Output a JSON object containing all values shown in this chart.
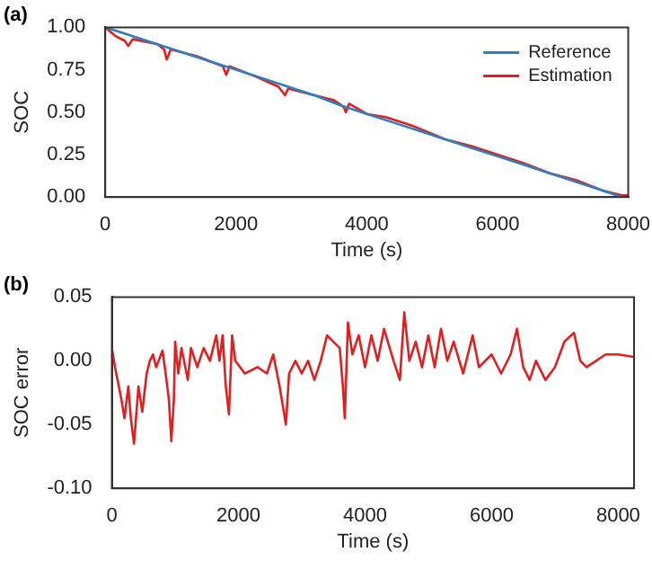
{
  "chart_data": [
    {
      "type": "line",
      "title": "(a)",
      "xlabel": "Time (s)",
      "ylabel": "SOC",
      "xlim": [
        0,
        8000
      ],
      "ylim": [
        0,
        1
      ],
      "xticks": [
        0,
        2000,
        4000,
        6000,
        8000
      ],
      "yticks": [
        {
          "value": 0,
          "label": "0.00"
        },
        {
          "value": 0.25,
          "label": "0.25"
        },
        {
          "value": 0.5,
          "label": "0.50"
        },
        {
          "value": 0.75,
          "label": "0.75"
        },
        {
          "value": 1,
          "label": "1.00"
        }
      ],
      "legend": "top right",
      "marker": "none",
      "line_style": "solid",
      "series": [
        {
          "name": "Reference",
          "color": "#2f7ec1",
          "x": [
            0,
            400,
            800,
            1200,
            1600,
            2000,
            2400,
            2800,
            3200,
            3600,
            4000,
            4400,
            4800,
            5200,
            5600,
            6000,
            6400,
            6800,
            7200,
            7600,
            7900
          ],
          "values": [
            1.0,
            0.95,
            0.9,
            0.85,
            0.8,
            0.75,
            0.7,
            0.65,
            0.6,
            0.54,
            0.49,
            0.44,
            0.39,
            0.34,
            0.29,
            0.24,
            0.19,
            0.14,
            0.09,
            0.04,
            0.0
          ]
        },
        {
          "name": "Estimation",
          "color": "#e02020",
          "x": [
            0,
            150,
            300,
            350,
            420,
            550,
            800,
            900,
            940,
            1000,
            1400,
            1800,
            1850,
            1900,
            2300,
            2650,
            2750,
            2800,
            3200,
            3500,
            3650,
            3680,
            3730,
            4000,
            4300,
            4620,
            4700,
            5200,
            5600,
            6000,
            6400,
            6800,
            7200,
            7600,
            7900,
            8000
          ],
          "values": [
            1.0,
            0.95,
            0.92,
            0.89,
            0.93,
            0.92,
            0.9,
            0.87,
            0.81,
            0.87,
            0.83,
            0.77,
            0.72,
            0.77,
            0.71,
            0.65,
            0.6,
            0.64,
            0.6,
            0.57,
            0.53,
            0.5,
            0.55,
            0.49,
            0.47,
            0.43,
            0.42,
            0.34,
            0.3,
            0.25,
            0.2,
            0.14,
            0.1,
            0.04,
            0.01,
            0.01
          ]
        }
      ]
    },
    {
      "type": "line",
      "title": "(b)",
      "xlabel": "Time (s)",
      "ylabel": "SOC error",
      "xlim": [
        0,
        8250
      ],
      "ylim": [
        -0.1,
        0.05
      ],
      "xticks": [
        0,
        2000,
        4000,
        6000,
        8000
      ],
      "yticks": [
        {
          "value": -0.1,
          "label": "-0.10"
        },
        {
          "value": -0.05,
          "label": "-0.05"
        },
        {
          "value": 0,
          "label": "0.00"
        },
        {
          "value": 0.05,
          "label": "0.05"
        }
      ],
      "marker": "none",
      "line_style": "solid",
      "series": [
        {
          "color": "#e02020",
          "x": [
            0,
            50,
            150,
            200,
            260,
            300,
            350,
            420,
            480,
            550,
            600,
            650,
            700,
            800,
            850,
            900,
            940,
            980,
            1000,
            1050,
            1100,
            1200,
            1250,
            1350,
            1450,
            1550,
            1650,
            1700,
            1750,
            1800,
            1850,
            1900,
            1950,
            2100,
            2300,
            2450,
            2550,
            2650,
            2750,
            2800,
            2900,
            3000,
            3100,
            3200,
            3300,
            3400,
            3500,
            3600,
            3650,
            3680,
            3730,
            3800,
            3900,
            4000,
            4100,
            4200,
            4300,
            4450,
            4550,
            4620,
            4700,
            4800,
            4900,
            5000,
            5100,
            5200,
            5300,
            5400,
            5550,
            5700,
            5800,
            6000,
            6150,
            6300,
            6400,
            6500,
            6600,
            6700,
            6850,
            7000,
            7150,
            7300,
            7400,
            7500,
            7650,
            7800,
            8000,
            8250
          ],
          "values": [
            0.01,
            -0.005,
            -0.03,
            -0.045,
            -0.02,
            -0.045,
            -0.065,
            -0.02,
            -0.04,
            -0.01,
            0.0,
            0.005,
            -0.005,
            0.008,
            -0.01,
            -0.03,
            -0.063,
            -0.03,
            0.015,
            -0.01,
            0.01,
            -0.015,
            0.01,
            -0.005,
            0.01,
            0.0,
            0.02,
            0.0,
            0.02,
            -0.02,
            -0.042,
            0.02,
            0.0,
            -0.01,
            -0.005,
            -0.01,
            0.005,
            -0.02,
            -0.05,
            -0.01,
            0.0,
            -0.01,
            0.0,
            -0.015,
            0.0,
            0.02,
            0.015,
            0.01,
            -0.02,
            -0.045,
            0.03,
            0.005,
            0.02,
            -0.005,
            0.02,
            0.0,
            0.025,
            0.0,
            -0.015,
            0.038,
            0.0,
            0.015,
            -0.005,
            0.02,
            -0.005,
            0.025,
            0.0,
            0.015,
            -0.01,
            0.02,
            -0.005,
            0.005,
            -0.01,
            0.005,
            0.025,
            -0.005,
            -0.015,
            0.0,
            -0.015,
            -0.005,
            0.015,
            0.022,
            0.0,
            -0.005,
            0.0,
            0.005,
            0.005,
            0.003
          ]
        }
      ]
    }
  ]
}
